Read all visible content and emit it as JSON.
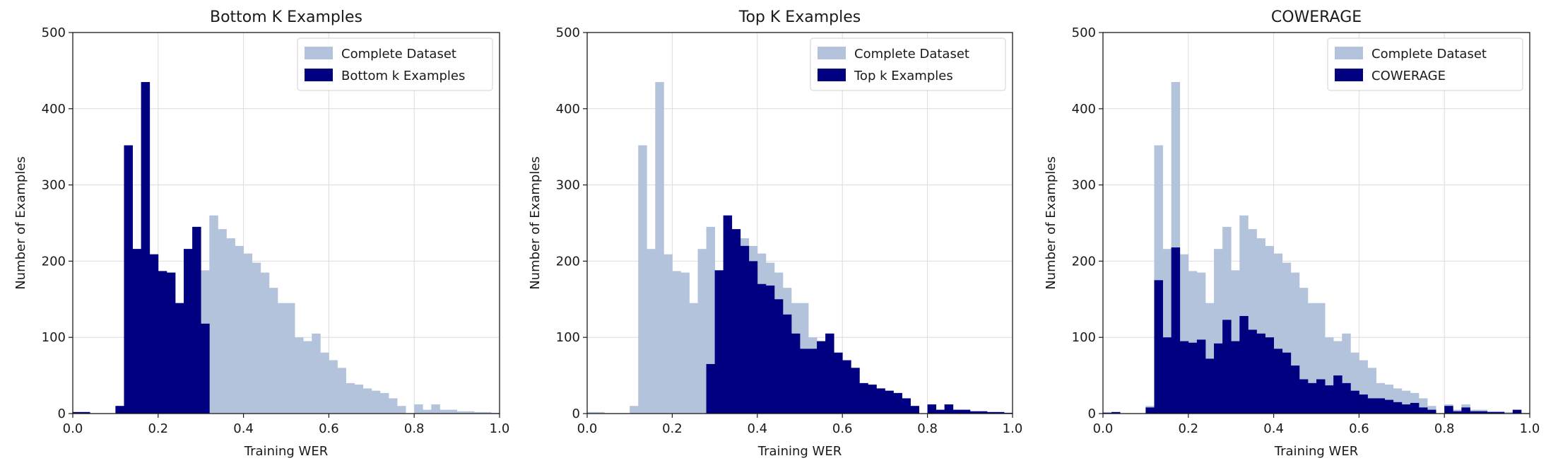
{
  "chart_data": [
    {
      "type": "bar",
      "title": "Bottom K Examples",
      "xlabel": "Training WER",
      "ylabel": "Number of Examples",
      "xlim": [
        0,
        1
      ],
      "ylim": [
        0,
        500
      ],
      "xticks": [
        "0.0",
        "0.2",
        "0.4",
        "0.6",
        "0.8",
        "1.0"
      ],
      "yticks": [
        "0",
        "100",
        "200",
        "300",
        "400",
        "500"
      ],
      "grid": true,
      "legend_position": "top-right",
      "bin_width": 0.02,
      "colors": {
        "background_series": "#b4c3dc",
        "highlight_series": "#000080"
      },
      "series": [
        {
          "name": "Complete Dataset",
          "values": [
            2,
            2,
            0,
            0,
            0,
            10,
            352,
            216,
            435,
            209,
            187,
            185,
            145,
            216,
            245,
            188,
            260,
            242,
            230,
            220,
            210,
            198,
            185,
            165,
            145,
            145,
            100,
            95,
            105,
            80,
            70,
            60,
            40,
            38,
            33,
            30,
            27,
            20,
            10,
            0,
            12,
            5,
            12,
            5,
            5,
            3,
            3,
            2,
            2,
            1
          ]
        },
        {
          "name": "Bottom k Examples",
          "values": [
            2,
            2,
            0,
            0,
            0,
            10,
            352,
            216,
            435,
            209,
            187,
            185,
            145,
            216,
            245,
            118,
            0,
            0,
            0,
            0,
            0,
            0,
            0,
            0,
            0,
            0,
            0,
            0,
            0,
            0,
            0,
            0,
            0,
            0,
            0,
            0,
            0,
            0,
            0,
            0,
            0,
            0,
            0,
            0,
            0,
            0,
            0,
            0,
            0,
            0
          ]
        }
      ]
    },
    {
      "type": "bar",
      "title": "Top K Examples",
      "xlabel": "Training WER",
      "ylabel": "Number of Examples",
      "xlim": [
        0,
        1
      ],
      "ylim": [
        0,
        500
      ],
      "xticks": [
        "0.0",
        "0.2",
        "0.4",
        "0.6",
        "0.8",
        "1.0"
      ],
      "yticks": [
        "0",
        "100",
        "200",
        "300",
        "400",
        "500"
      ],
      "grid": true,
      "legend_position": "top-right",
      "bin_width": 0.02,
      "colors": {
        "background_series": "#b4c3dc",
        "highlight_series": "#000080"
      },
      "series": [
        {
          "name": "Complete Dataset",
          "values": [
            2,
            2,
            0,
            0,
            0,
            10,
            352,
            216,
            435,
            209,
            187,
            185,
            145,
            216,
            245,
            188,
            260,
            242,
            230,
            220,
            210,
            198,
            185,
            165,
            145,
            145,
            100,
            95,
            105,
            80,
            70,
            60,
            40,
            38,
            33,
            30,
            27,
            20,
            10,
            0,
            12,
            5,
            12,
            5,
            5,
            3,
            3,
            2,
            2,
            1
          ]
        },
        {
          "name": "Top k Examples",
          "values": [
            0,
            0,
            0,
            0,
            0,
            0,
            0,
            0,
            0,
            0,
            0,
            0,
            0,
            0,
            65,
            188,
            260,
            242,
            220,
            200,
            170,
            168,
            150,
            130,
            105,
            85,
            85,
            95,
            105,
            80,
            70,
            60,
            40,
            38,
            33,
            30,
            27,
            20,
            10,
            0,
            12,
            5,
            12,
            5,
            5,
            3,
            3,
            2,
            2,
            1
          ]
        }
      ]
    },
    {
      "type": "bar",
      "title": "COWERAGE",
      "xlabel": "Training WER",
      "ylabel": "Number of Examples",
      "xlim": [
        0,
        1
      ],
      "ylim": [
        0,
        500
      ],
      "xticks": [
        "0.0",
        "0.2",
        "0.4",
        "0.6",
        "0.8",
        "1.0"
      ],
      "yticks": [
        "0",
        "100",
        "200",
        "300",
        "400",
        "500"
      ],
      "grid": true,
      "legend_position": "top-right",
      "bin_width": 0.02,
      "colors": {
        "background_series": "#b4c3dc",
        "highlight_series": "#000080"
      },
      "series": [
        {
          "name": "Complete Dataset",
          "values": [
            2,
            2,
            0,
            0,
            0,
            10,
            352,
            216,
            435,
            209,
            187,
            185,
            145,
            216,
            245,
            188,
            260,
            242,
            230,
            220,
            210,
            198,
            185,
            165,
            145,
            145,
            100,
            95,
            105,
            80,
            70,
            60,
            40,
            38,
            33,
            30,
            27,
            20,
            10,
            0,
            12,
            5,
            12,
            5,
            5,
            3,
            3,
            2,
            2,
            1
          ]
        },
        {
          "name": "COWERAGE",
          "values": [
            1,
            2,
            0,
            0,
            0,
            8,
            175,
            100,
            218,
            95,
            93,
            97,
            72,
            92,
            123,
            95,
            128,
            110,
            105,
            100,
            85,
            80,
            63,
            45,
            40,
            45,
            37,
            50,
            40,
            30,
            25,
            20,
            20,
            18,
            15,
            12,
            14,
            8,
            5,
            0,
            10,
            3,
            8,
            3,
            3,
            2,
            2,
            0,
            5,
            0
          ]
        }
      ]
    }
  ]
}
